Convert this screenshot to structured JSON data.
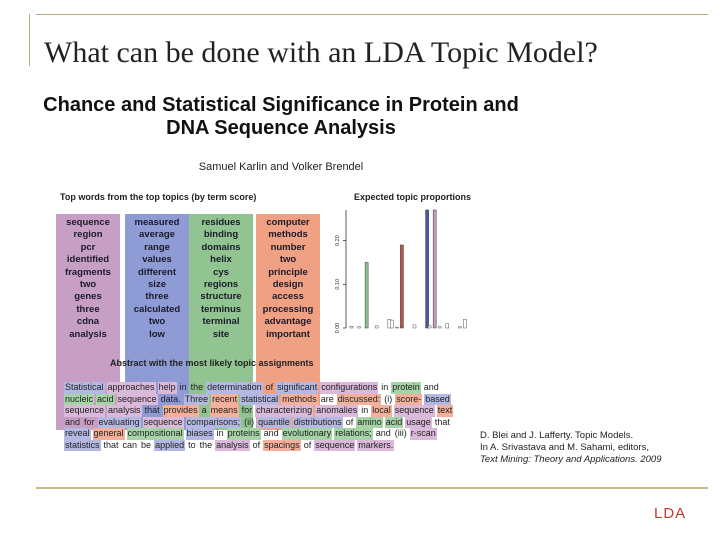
{
  "slide": {
    "title": "What can be done with an LDA Topic Model?",
    "footer_label": "LDA",
    "citation": {
      "line1": "D. Blei and J. Lafferty. Topic Models.",
      "line2": "In A. Srivastava and M. Sahami, editors,",
      "line3": "Text Mining: Theory and Applications. 2009"
    }
  },
  "figure": {
    "paper_title_line1": "Chance and Statistical Significance in Protein and",
    "paper_title_line2": "DNA Sequence Analysis",
    "authors": "Samuel Karlin and Volker Brendel",
    "words_panel_title": "Top words from the top topics (by term score)",
    "proportions_panel_title": "Expected topic proportions",
    "abstract_panel_title": "Abstract with the most likely topic assignments",
    "topics": [
      {
        "color": "#c89fc4",
        "words": [
          "sequence",
          "region",
          "pcr",
          "identified",
          "fragments",
          "two",
          "genes",
          "three",
          "cdna",
          "analysis"
        ]
      },
      {
        "color": "#8f9bd4",
        "words": [
          "measured",
          "average",
          "range",
          "values",
          "different",
          "size",
          "three",
          "calculated",
          "two",
          "low"
        ]
      },
      {
        "color": "#91c491",
        "words": [
          "residues",
          "binding",
          "domains",
          "helix",
          "cys",
          "regions",
          "structure",
          "terminus",
          "terminal",
          "site"
        ]
      },
      {
        "color": "#f0a083",
        "words": [
          "computer",
          "methods",
          "number",
          "two",
          "principle",
          "design",
          "access",
          "processing",
          "advantage",
          "important"
        ]
      }
    ],
    "abstract_words": [
      {
        "w": "Statistical",
        "t": 1
      },
      {
        "w": "approaches",
        "t": 4
      },
      {
        "w": "help",
        "t": 4
      },
      {
        "w": "in",
        "t": 0
      },
      {
        "w": "the",
        "t": 0
      },
      {
        "w": "determination",
        "t": 1
      },
      {
        "w": "of",
        "t": 0
      },
      {
        "w": "significant",
        "t": 1
      },
      {
        "w": "configurations",
        "t": 4
      },
      {
        "w": "in",
        "t": 0
      },
      {
        "w": "protein",
        "t": 2
      },
      {
        "w": "and",
        "t": 0
      },
      {
        "w": "nucleic",
        "t": 2
      },
      {
        "w": "acid",
        "t": 2
      },
      {
        "w": "sequence",
        "t": 4
      },
      {
        "w": "data.",
        "t": 0
      },
      {
        "w": "Three",
        "t": 1
      },
      {
        "w": "recent",
        "t": 3
      },
      {
        "w": "statistical",
        "t": 1
      },
      {
        "w": "methods",
        "t": 3
      },
      {
        "w": "are",
        "t": 0
      },
      {
        "w": "discussed:",
        "t": 3
      },
      {
        "w": "(i)",
        "t": 0
      },
      {
        "w": "score-",
        "t": 3
      },
      {
        "w": "based",
        "t": 1
      },
      {
        "w": "sequence",
        "t": 4
      },
      {
        "w": "analysis",
        "t": 4
      },
      {
        "w": "that",
        "t": 0
      },
      {
        "w": "provides",
        "t": 3
      },
      {
        "w": "a",
        "t": 0
      },
      {
        "w": "means",
        "t": 3
      },
      {
        "w": "for",
        "t": 0
      },
      {
        "w": "characterizing",
        "t": 4
      },
      {
        "w": "anomalies",
        "t": 4
      },
      {
        "w": "in",
        "t": 0
      },
      {
        "w": "local",
        "t": 3
      },
      {
        "w": "sequence",
        "t": 4
      },
      {
        "w": "text",
        "t": 3
      },
      {
        "w": "and",
        "t": 0
      },
      {
        "w": "for",
        "t": 0
      },
      {
        "w": "evaluating",
        "t": 1
      },
      {
        "w": "sequence",
        "t": 4
      },
      {
        "w": "comparisons;",
        "t": 1
      },
      {
        "w": "(ii)",
        "t": 0
      },
      {
        "w": "quantile",
        "t": 1
      },
      {
        "w": "distributions",
        "t": 1
      },
      {
        "w": "of",
        "t": 0
      },
      {
        "w": "amino",
        "t": 2
      },
      {
        "w": "acid",
        "t": 2
      },
      {
        "w": "usage",
        "t": 4
      },
      {
        "w": "that",
        "t": 0
      },
      {
        "w": "reveal",
        "t": 1
      },
      {
        "w": "general",
        "t": 3
      },
      {
        "w": "compositional",
        "t": 2
      },
      {
        "w": "biases",
        "t": 1
      },
      {
        "w": "in",
        "t": 0
      },
      {
        "w": "proteins",
        "t": 2
      },
      {
        "w": "and",
        "t": 0
      },
      {
        "w": "evolutionary",
        "t": 2
      },
      {
        "w": "relations;",
        "t": 2
      },
      {
        "w": "and",
        "t": 0
      },
      {
        "w": "(iii)",
        "t": 0
      },
      {
        "w": "r-scan",
        "t": 4
      },
      {
        "w": "statistics",
        "t": 1
      },
      {
        "w": "that",
        "t": 0
      },
      {
        "w": "can",
        "t": 0
      },
      {
        "w": "be",
        "t": 0
      },
      {
        "w": "applied",
        "t": 1
      },
      {
        "w": "to",
        "t": 0
      },
      {
        "w": "the",
        "t": 0
      },
      {
        "w": "analysis",
        "t": 4
      },
      {
        "w": "of",
        "t": 0
      },
      {
        "w": "spacings",
        "t": 3
      },
      {
        "w": "of",
        "t": 0
      },
      {
        "w": "sequence",
        "t": 4
      },
      {
        "w": "markers.",
        "t": 4
      }
    ],
    "chart_data": {
      "type": "bar",
      "title": "Expected topic proportions",
      "ytick_labels": [
        "0.00",
        "0.10",
        "0.20"
      ],
      "ylim": [
        0,
        0.27
      ],
      "bars": [
        {
          "index": 0,
          "value": 0.004,
          "color": "#888888"
        },
        {
          "index": 3,
          "value": 0.003,
          "color": "#888888"
        },
        {
          "index": 6,
          "value": 0.15,
          "color": "#91c491"
        },
        {
          "index": 10,
          "value": 0.005,
          "color": "#888888"
        },
        {
          "index": 15,
          "value": 0.02,
          "color": "#888888"
        },
        {
          "index": 16,
          "value": 0.018,
          "color": "#888888"
        },
        {
          "index": 18,
          "value": 0.002,
          "color": "#888888"
        },
        {
          "index": 20,
          "value": 0.19,
          "color": "#c0504d"
        },
        {
          "index": 25,
          "value": 0.007,
          "color": "#888888"
        },
        {
          "index": 30,
          "value": 0.27,
          "color": "#4a57a8"
        },
        {
          "index": 31,
          "value": 0.005,
          "color": "#888888"
        },
        {
          "index": 33,
          "value": 0.27,
          "color": "#c89fc4"
        },
        {
          "index": 35,
          "value": 0.003,
          "color": "#888888"
        },
        {
          "index": 38,
          "value": 0.01,
          "color": "#888888"
        },
        {
          "index": 43,
          "value": 0.003,
          "color": "#888888"
        },
        {
          "index": 45,
          "value": 0.02,
          "color": "#888888"
        }
      ],
      "n_topics": 50
    }
  }
}
